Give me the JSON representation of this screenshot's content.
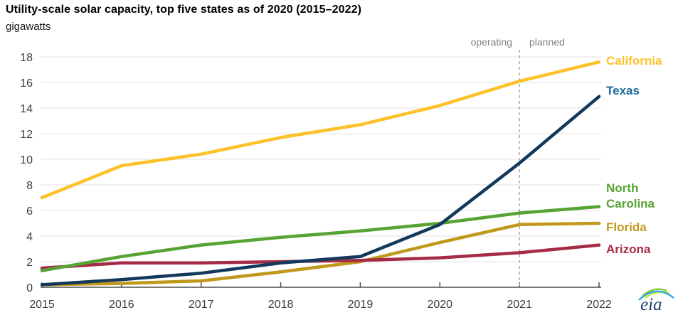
{
  "header": {
    "title": "Utility-scale solar capacity, top five states as of 2020 (2015–2022)",
    "subtitle": "gigawatts"
  },
  "annotations": {
    "operating": "operating",
    "planned": "planned"
  },
  "chart_data": {
    "type": "line",
    "title": "Utility-scale solar capacity, top five states as of 2020 (2015–2022)",
    "unit_label": "gigawatts",
    "x": [
      2015,
      2016,
      2017,
      2018,
      2019,
      2020,
      2021,
      2022
    ],
    "series": [
      {
        "name": "California",
        "color": "#FDC12A",
        "label_color": "#FDC12A",
        "values": [
          7.0,
          9.5,
          10.4,
          11.7,
          12.7,
          14.2,
          16.1,
          17.6
        ]
      },
      {
        "name": "Texas",
        "color": "#12395B",
        "label_color": "#1B6D9C",
        "values": [
          0.2,
          0.6,
          1.1,
          1.9,
          2.4,
          4.9,
          9.7,
          14.9
        ]
      },
      {
        "name": "North Carolina",
        "color": "#57A333",
        "label_color": "#57A333",
        "values": [
          1.3,
          2.4,
          3.3,
          3.9,
          4.4,
          5.0,
          5.8,
          6.3
        ]
      },
      {
        "name": "Florida",
        "color": "#C0991B",
        "label_color": "#C0991B",
        "values": [
          0.2,
          0.3,
          0.5,
          1.2,
          2.0,
          3.5,
          4.9,
          5.0
        ]
      },
      {
        "name": "Arizona",
        "color": "#A52C46",
        "label_color": "#A52C46",
        "values": [
          1.5,
          1.9,
          1.9,
          2.0,
          2.1,
          2.3,
          2.7,
          3.3
        ]
      }
    ],
    "yticks": [
      0,
      2,
      4,
      6,
      8,
      10,
      12,
      14,
      16,
      18
    ],
    "ylim": [
      0,
      18
    ],
    "grid": true,
    "legend_position": "right-edge-labels",
    "divider_x": 2021,
    "divider_left_label": "operating",
    "divider_right_label": "planned",
    "colors": {
      "grid": "#E2E2E2",
      "axis": "#4D4D4D",
      "tick_text": "#3D3D3D",
      "divider": "#A8A8A8",
      "annotation_text": "#808080"
    }
  },
  "logo": {
    "text": "eia"
  }
}
